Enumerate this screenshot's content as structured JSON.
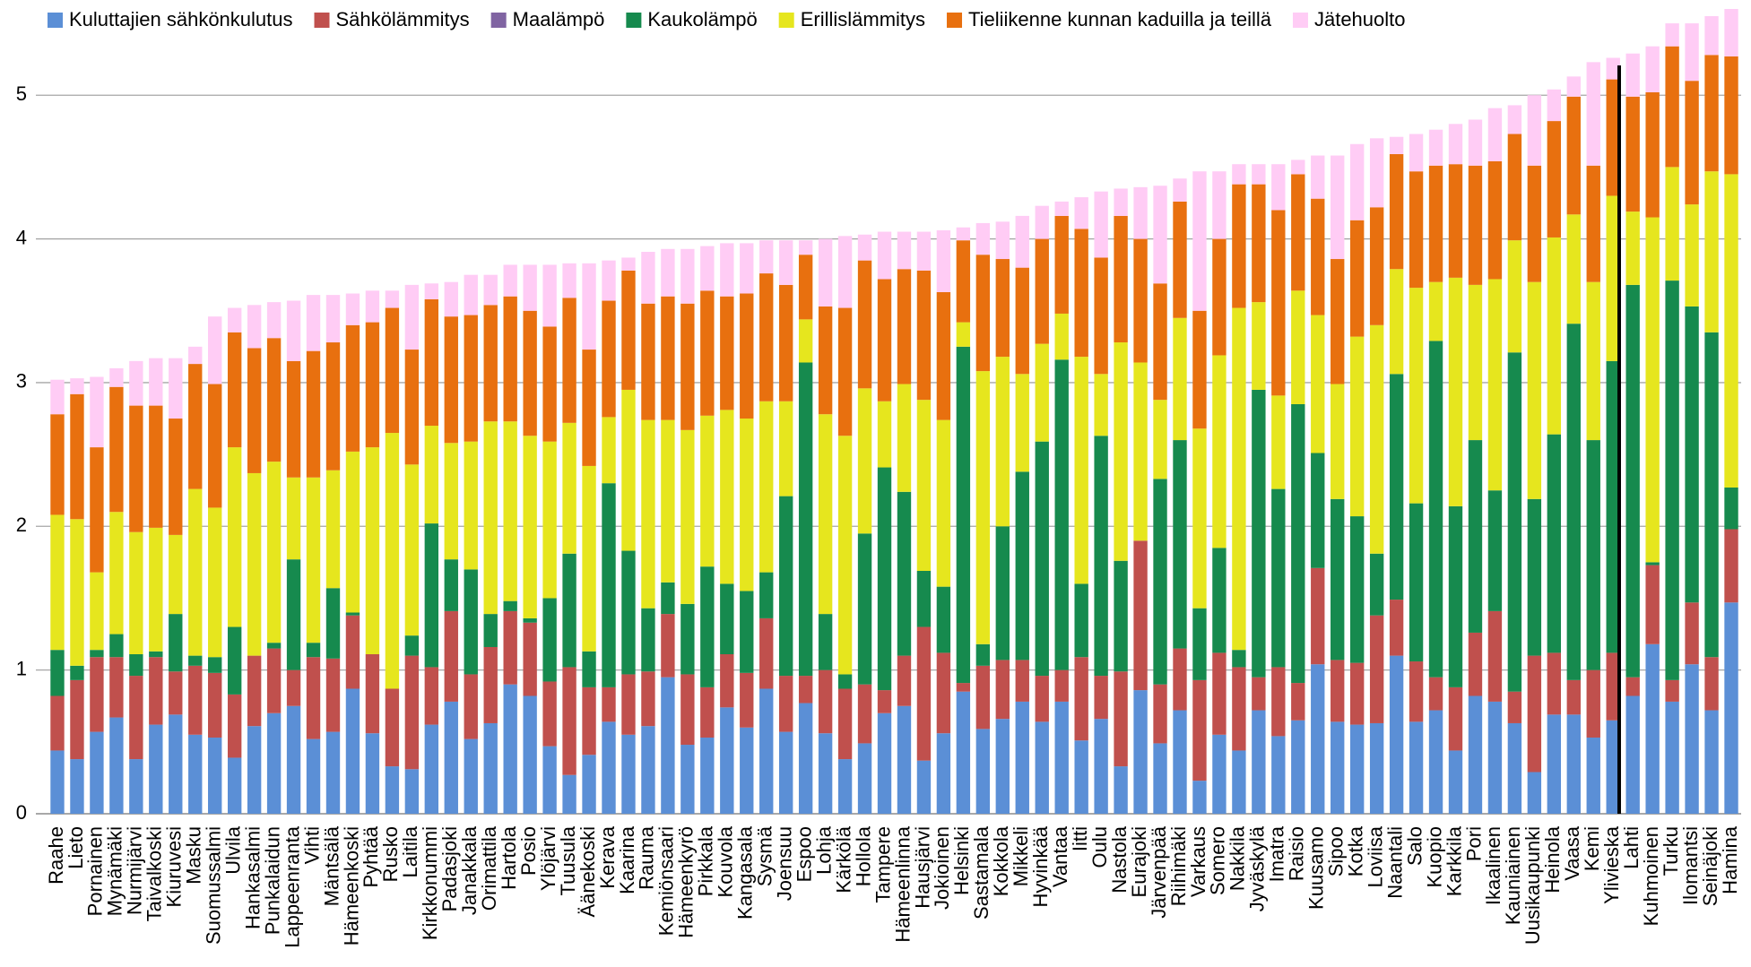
{
  "chart_data": {
    "type": "stacked_bar",
    "legend": "top",
    "grid": true,
    "ylim": [
      0,
      5.6
    ],
    "yticks": [
      0,
      1,
      2,
      3,
      4,
      5
    ],
    "categories": [
      "Raahe",
      "Lieto",
      "Pornainen",
      "Mynämäki",
      "Nurmijärvi",
      "Taivalkoski",
      "Kiuruvesi",
      "Masku",
      "Suomussalmi",
      "Ulvila",
      "Hankasalmi",
      "Punkalaidun",
      "Lappeenranta",
      "Vihti",
      "Mäntsälä",
      "Hämeenkoski",
      "Pyhtää",
      "Rusko",
      "Laitila",
      "Kirkkonummi",
      "Padasjoki",
      "Janakkala",
      "Orimattila",
      "Hartola",
      "Posio",
      "Ylöjärvi",
      "Tuusula",
      "Äänekoski",
      "Kerava",
      "Kaarina",
      "Rauma",
      "Kemiönsaari",
      "Hämeenkyrö",
      "Pirkkala",
      "Kouvola",
      "Kangasala",
      "Sysmä",
      "Joensuu",
      "Espoo",
      "Lohja",
      "Kärkölä",
      "Hollola",
      "Tampere",
      "Hämeenlinna",
      "Hausjärvi",
      "Jokioinen",
      "Helsinki",
      "Sastamala",
      "Kokkola",
      "Mikkeli",
      "Hyvinkää",
      "Vantaa",
      "Iitti",
      "Oulu",
      "Nastola",
      "Eurajoki",
      "Järvenpää",
      "Riihimäki",
      "Varkaus",
      "Somero",
      "Nakkila",
      "Jyväskylä",
      "Imatra",
      "Raisio",
      "Kuusamo",
      "Sipoo",
      "Kotka",
      "Loviisa",
      "Naantali",
      "Salo",
      "Kuopio",
      "Karkkila",
      "Pori",
      "Ikaalinen",
      "Kauniainen",
      "Uusikaupunki",
      "Heinola",
      "Vaasa",
      "Kemi",
      "Ylivieska",
      "Lahti",
      "Kuhmoinen",
      "Turku",
      "Ilomantsi",
      "Seinäjoki",
      "Hamina"
    ],
    "series": [
      {
        "name": "Kuluttajien sähkönkulutus",
        "color": "#5b8fd6",
        "values": [
          0.44,
          0.38,
          0.57,
          0.67,
          0.38,
          0.62,
          0.69,
          0.55,
          0.53,
          0.39,
          0.61,
          0.7,
          0.75,
          0.52,
          0.57,
          0.87,
          0.56,
          0.33,
          0.31,
          0.62,
          0.78,
          0.52,
          0.63,
          0.9,
          0.82,
          0.47,
          0.27,
          0.41,
          0.64,
          0.55,
          0.61,
          0.95,
          0.48,
          0.53,
          0.74,
          0.6,
          0.87,
          0.57,
          0.77,
          0.56,
          0.38,
          0.49,
          0.7,
          0.75,
          0.37,
          0.56,
          0.85,
          0.59,
          0.66,
          0.78,
          0.64,
          0.78,
          0.51,
          0.66,
          0.33,
          0.86,
          0.49,
          0.72,
          0.23,
          0.55,
          0.44,
          0.72,
          0.54,
          0.65,
          1.04,
          0.64,
          0.62,
          0.63,
          1.1,
          0.64,
          0.72,
          0.44,
          0.82,
          0.78,
          0.63,
          0.29,
          0.69,
          0.69,
          0.53,
          0.65,
          0.82,
          1.18,
          0.78,
          1.04,
          0.72,
          1.47
        ]
      },
      {
        "name": "Sähkölämmitys",
        "color": "#c0504d",
        "values": [
          0.38,
          0.55,
          0.52,
          0.42,
          0.58,
          0.47,
          0.3,
          0.48,
          0.45,
          0.44,
          0.49,
          0.45,
          0.25,
          0.57,
          0.51,
          0.51,
          0.55,
          0.54,
          0.79,
          0.4,
          0.63,
          0.45,
          0.53,
          0.51,
          0.51,
          0.45,
          0.75,
          0.47,
          0.24,
          0.42,
          0.38,
          0.44,
          0.49,
          0.35,
          0.37,
          0.38,
          0.49,
          0.39,
          0.19,
          0.44,
          0.49,
          0.41,
          0.16,
          0.35,
          0.93,
          0.56,
          0.06,
          0.44,
          0.41,
          0.29,
          0.32,
          0.22,
          0.58,
          0.3,
          0.66,
          1.04,
          0.41,
          0.43,
          0.7,
          0.57,
          0.58,
          0.23,
          0.48,
          0.26,
          0.67,
          0.43,
          0.43,
          0.75,
          0.39,
          0.42,
          0.23,
          0.44,
          0.44,
          0.63,
          0.22,
          0.81,
          0.43,
          0.24,
          0.47,
          0.47,
          0.13,
          0.55,
          0.15,
          0.43,
          0.37,
          0.51
        ]
      },
      {
        "name": "Maalämpö",
        "color": "#8064a2",
        "values": [
          0,
          0,
          0,
          0,
          0,
          0,
          0,
          0,
          0,
          0,
          0,
          0,
          0,
          0,
          0,
          0,
          0,
          0,
          0,
          0,
          0,
          0,
          0,
          0,
          0,
          0,
          0,
          0,
          0,
          0,
          0,
          0,
          0,
          0,
          0,
          0,
          0,
          0,
          0,
          0,
          0,
          0,
          0,
          0,
          0,
          0,
          0,
          0,
          0,
          0,
          0,
          0,
          0,
          0,
          0,
          0,
          0,
          0,
          0,
          0,
          0,
          0,
          0,
          0,
          0,
          0,
          0,
          0,
          0,
          0,
          0,
          0,
          0,
          0,
          0,
          0,
          0,
          0,
          0,
          0,
          0,
          0,
          0,
          0,
          0,
          0
        ]
      },
      {
        "name": "Kaukolämpö",
        "color": "#168a4e",
        "values": [
          0.32,
          0.1,
          0.05,
          0.16,
          0.15,
          0.04,
          0.4,
          0.07,
          0.11,
          0.47,
          0,
          0.04,
          0.77,
          0.1,
          0.49,
          0.02,
          0,
          0,
          0.14,
          1.0,
          0.36,
          0.73,
          0.23,
          0.07,
          0.03,
          0.58,
          0.79,
          0.25,
          1.42,
          0.86,
          0.44,
          0.22,
          0.49,
          0.84,
          0.49,
          0.57,
          0.32,
          1.25,
          2.18,
          0.39,
          0.1,
          1.05,
          1.55,
          1.14,
          0.39,
          0.46,
          2.34,
          0.15,
          0.93,
          1.31,
          1.63,
          2.16,
          0.51,
          1.67,
          0.77,
          0,
          1.43,
          1.45,
          0.5,
          0.73,
          0.12,
          2.0,
          1.24,
          1.94,
          0.8,
          1.12,
          1.02,
          0.43,
          1.57,
          1.1,
          2.34,
          1.26,
          1.34,
          0.84,
          2.36,
          1.09,
          1.52,
          2.48,
          1.6,
          2.03,
          2.73,
          0.02,
          2.78,
          2.06,
          2.26,
          0.29
        ]
      },
      {
        "name": "Erillislämmitys",
        "color": "#e6e61e",
        "values": [
          0.94,
          1.02,
          0.54,
          0.85,
          0.85,
          0.86,
          0.55,
          1.16,
          1.04,
          1.25,
          1.27,
          1.26,
          0.57,
          1.15,
          0.82,
          1.12,
          1.44,
          1.78,
          1.19,
          0.68,
          0.81,
          0.89,
          1.34,
          1.25,
          1.27,
          1.09,
          0.91,
          1.29,
          0.46,
          1.12,
          1.31,
          1.13,
          1.21,
          1.05,
          1.21,
          1.2,
          1.19,
          0.66,
          0.3,
          1.39,
          1.66,
          1.01,
          0.46,
          0.75,
          1.19,
          1.16,
          0.17,
          1.9,
          1.18,
          0.68,
          0.68,
          0.32,
          1.58,
          0.43,
          1.52,
          1.24,
          0.55,
          0.85,
          1.25,
          1.34,
          2.38,
          0.61,
          0.65,
          0.79,
          0.96,
          0.8,
          1.25,
          1.59,
          0.73,
          1.5,
          0.41,
          1.59,
          1.08,
          1.47,
          0.78,
          1.51,
          1.37,
          0.76,
          1.1,
          1.15,
          0.51,
          2.4,
          0.79,
          0.71,
          1.12,
          2.18
        ]
      },
      {
        "name": "Tieliikenne kunnan kaduilla ja teillä",
        "color": "#e8700f",
        "values": [
          0.7,
          0.87,
          0.87,
          0.87,
          0.88,
          0.85,
          0.81,
          0.87,
          0.86,
          0.8,
          0.87,
          0.86,
          0.81,
          0.88,
          0.89,
          0.88,
          0.87,
          0.87,
          0.8,
          0.88,
          0.88,
          0.88,
          0.81,
          0.87,
          0.87,
          0.8,
          0.87,
          0.81,
          0.81,
          0.83,
          0.81,
          0.86,
          0.88,
          0.87,
          0.79,
          0.87,
          0.89,
          0.81,
          0.45,
          0.75,
          0.89,
          0.89,
          0.85,
          0.8,
          0.9,
          0.89,
          0.57,
          0.81,
          0.68,
          0.74,
          0.73,
          0.68,
          0.89,
          0.81,
          0.88,
          0.86,
          0.81,
          0.81,
          0.82,
          0.81,
          0.86,
          0.82,
          1.29,
          0.81,
          0.81,
          0.87,
          0.81,
          0.82,
          0.8,
          0.81,
          0.81,
          0.79,
          0.83,
          0.82,
          0.74,
          0.81,
          0.81,
          0.82,
          0.81,
          0.81,
          0.8,
          0.87,
          0.84,
          0.86,
          0.81,
          0.82
        ]
      },
      {
        "name": "Jätehuolto",
        "color": "#ffccf5",
        "values": [
          0.24,
          0.11,
          0.49,
          0.13,
          0.31,
          0.33,
          0.42,
          0.12,
          0.47,
          0.17,
          0.3,
          0.25,
          0.42,
          0.39,
          0.33,
          0.22,
          0.22,
          0.12,
          0.45,
          0.11,
          0.24,
          0.28,
          0.21,
          0.22,
          0.32,
          0.43,
          0.24,
          0.6,
          0.28,
          0.09,
          0.36,
          0.33,
          0.38,
          0.31,
          0.37,
          0.35,
          0.23,
          0.31,
          0.1,
          0.47,
          0.5,
          0.18,
          0.33,
          0.26,
          0.27,
          0.43,
          0.09,
          0.22,
          0.26,
          0.36,
          0.23,
          0.1,
          0.22,
          0.46,
          0.19,
          0.36,
          0.68,
          0.16,
          0.97,
          0.47,
          0.14,
          0.14,
          0.32,
          0.1,
          0.3,
          0.72,
          0.53,
          0.48,
          0.12,
          0.26,
          0.25,
          0.28,
          0.32,
          0.37,
          0.2,
          0.49,
          0.22,
          0.14,
          0.72,
          0.15,
          0.3,
          0.32,
          0.16,
          0.4,
          0.27,
          0.33
        ]
      }
    ]
  }
}
